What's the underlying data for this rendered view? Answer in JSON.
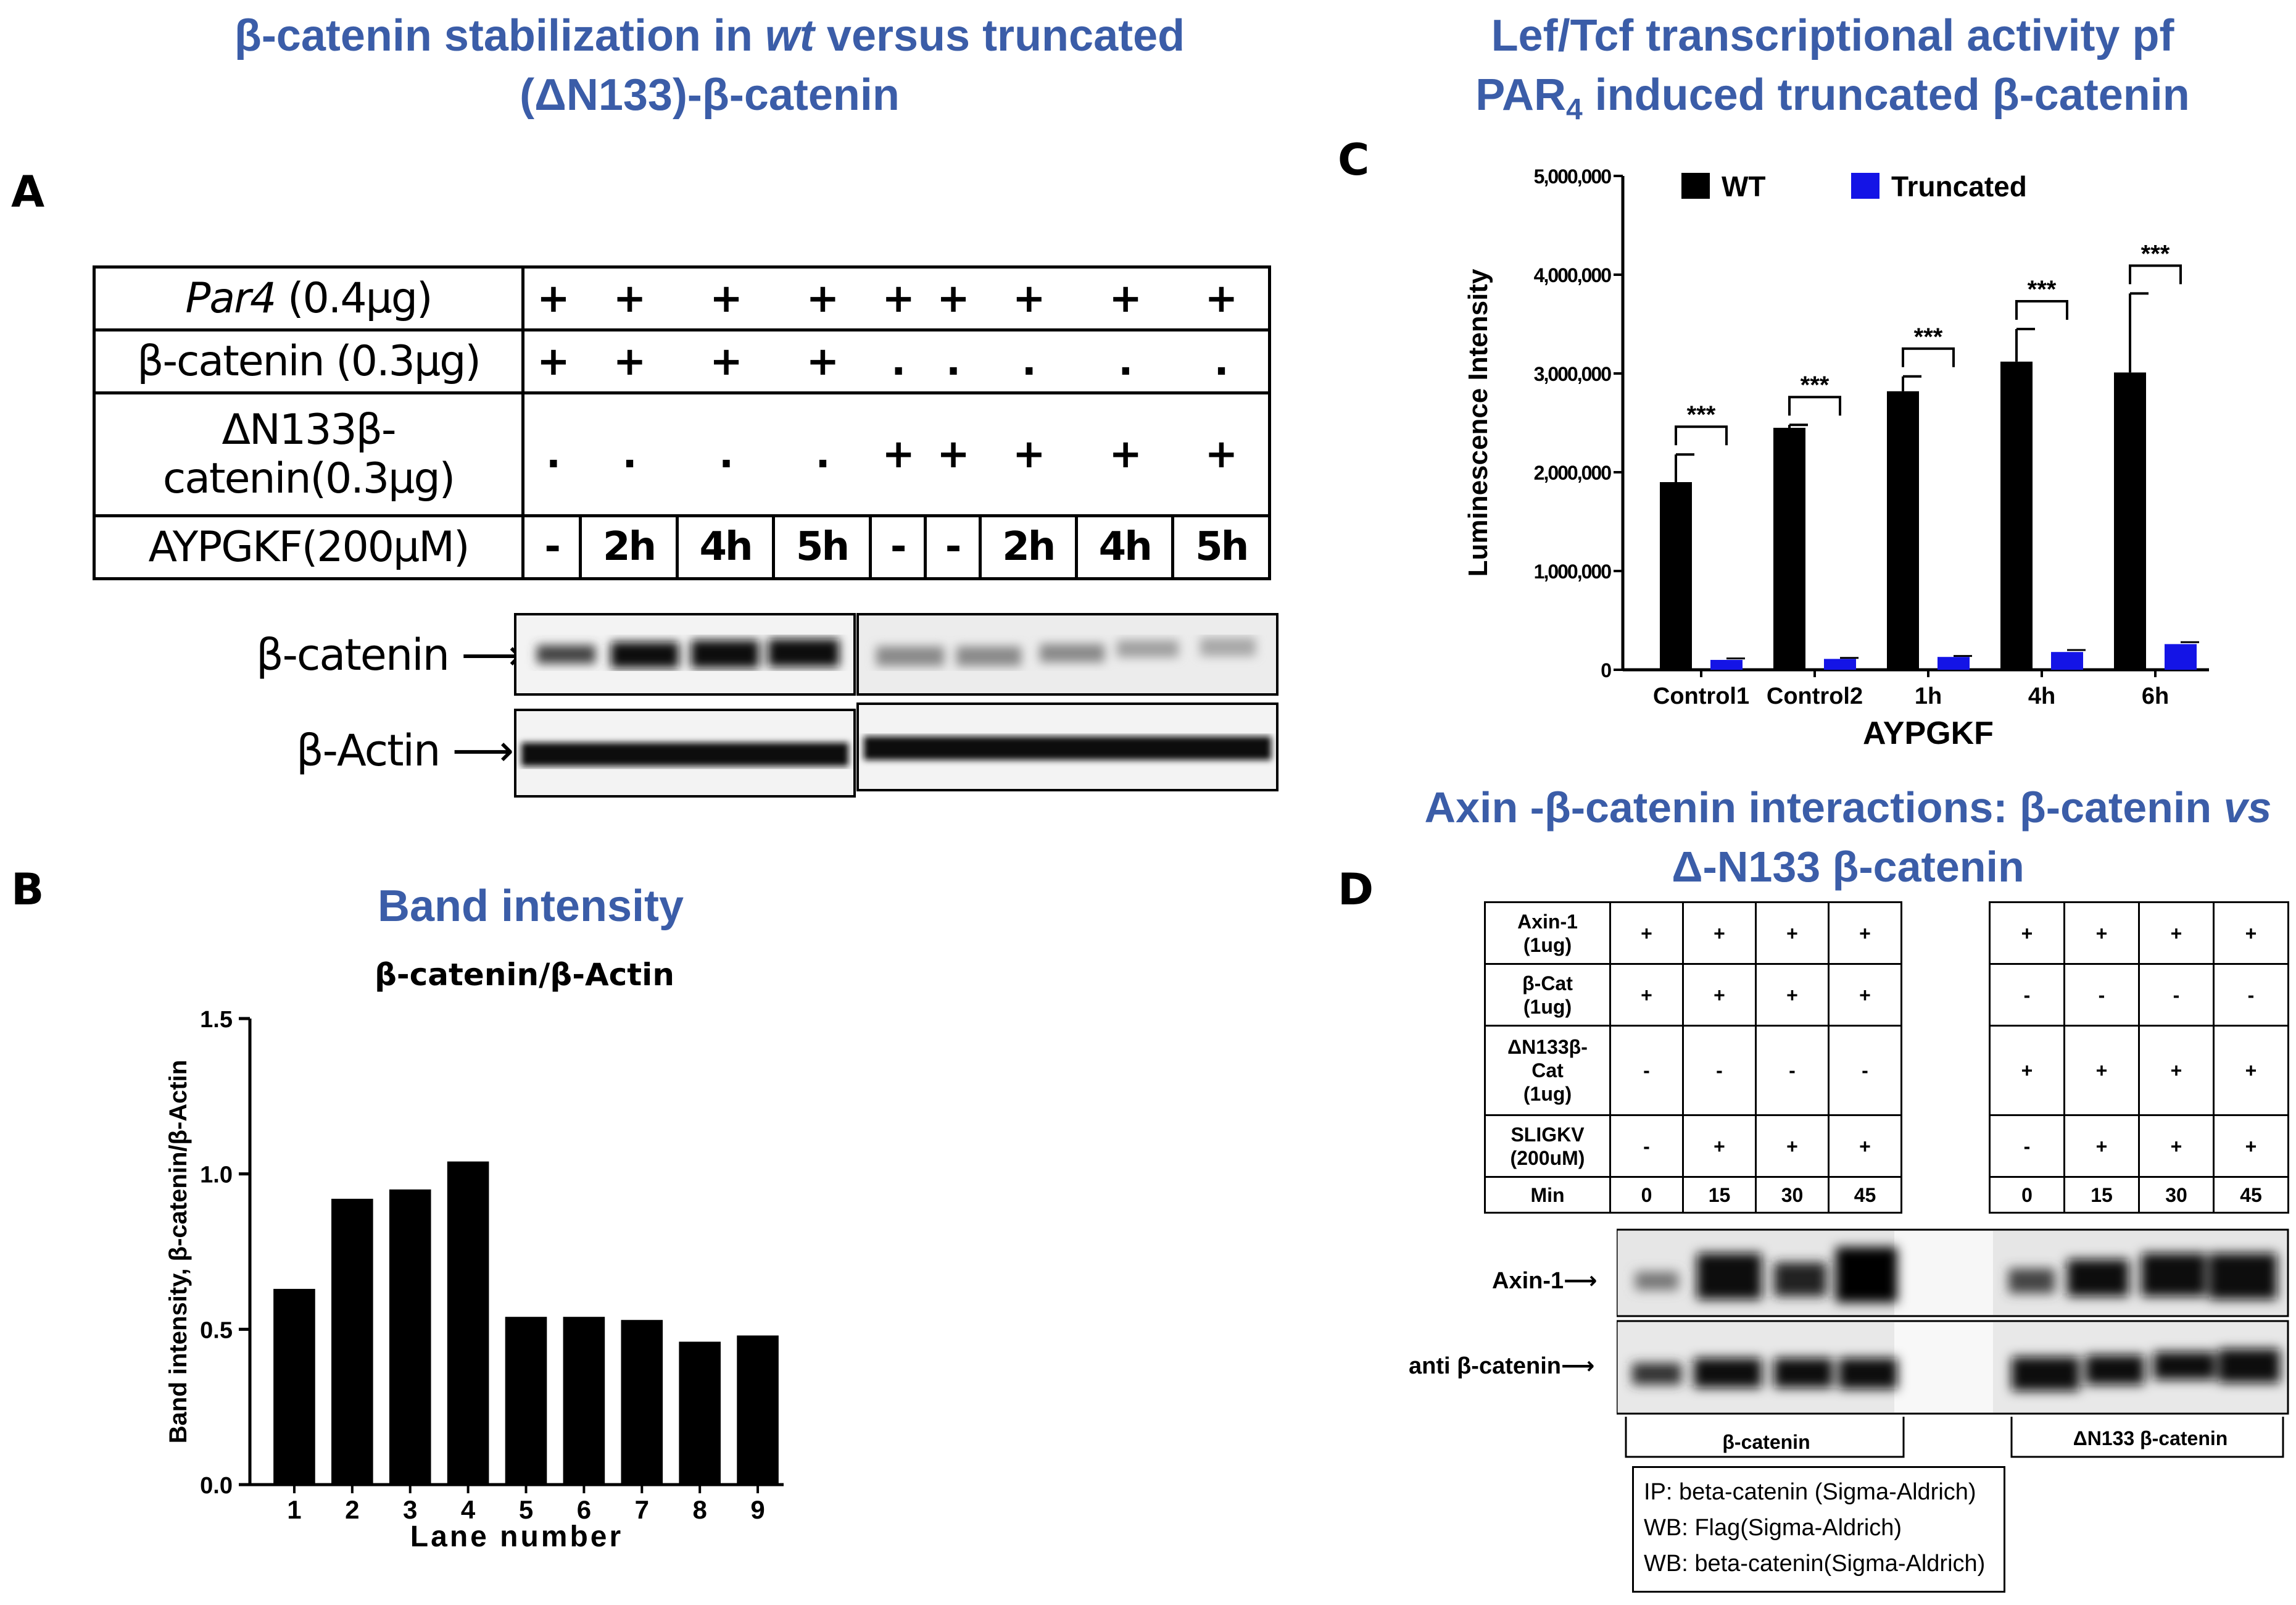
{
  "panel_a": {
    "title_line1_pre": "β-catenin stabilization  in ",
    "title_line1_em": "wt",
    "title_line1_post": " versus truncated",
    "title_line2": "(ΔN133)-β-catenin",
    "letter": "A",
    "rows": [
      {
        "label_em": "Par4",
        "label_rest": " (0.4μg)",
        "cells": [
          "+",
          "+",
          "+",
          "+",
          "+",
          "+",
          "+",
          "+",
          "+"
        ]
      },
      {
        "label_em": "",
        "label_rest": "β-catenin (0.3μg)",
        "cells": [
          "+",
          "+",
          "+",
          "+",
          ".",
          ".",
          ".",
          ".",
          "."
        ]
      },
      {
        "label_em": "",
        "label_rest": "ΔN133β-catenin(0.3μg)",
        "cells": [
          ".",
          ".",
          ".",
          ".",
          "+",
          "+",
          "+",
          "+",
          "+"
        ]
      },
      {
        "label_em": "",
        "label_rest": "AYPGKF(200μM)",
        "cells": [
          "-",
          "2h",
          "4h",
          "5h",
          "-",
          "-",
          "2h",
          "4h",
          "5h"
        ]
      }
    ],
    "blot_labels": [
      "β-catenin",
      "β-Actin"
    ],
    "arrow": "⟶"
  },
  "panel_b": {
    "letter": "B",
    "title": "Band intensity",
    "subtitle": "β-catenin/β-Actin",
    "chart_data": {
      "type": "bar",
      "categories": [
        "1",
        "2",
        "3",
        "4",
        "5",
        "6",
        "7",
        "8",
        "9"
      ],
      "values": [
        0.63,
        0.92,
        0.95,
        1.04,
        0.54,
        0.54,
        0.53,
        0.46,
        0.48
      ],
      "title": "β-catenin/β-Actin",
      "xlabel": "Lane number",
      "ylabel": "Band intensity, β-catenin/β-Actin",
      "ylim": [
        0,
        1.5
      ],
      "yticks": [
        "0.0",
        "0.5",
        "1.0",
        "1.5"
      ]
    }
  },
  "panel_c": {
    "letter": "C",
    "title_line1": "Lef/Tcf transcriptional  activity pf",
    "title_line2_pre": "PAR",
    "title_line2_sub": "4",
    "title_line2_post": " induced truncated β-catenin",
    "chart_data": {
      "type": "bar",
      "categories": [
        "Control1",
        "Control2",
        "1h",
        "4h",
        "6h"
      ],
      "series": [
        {
          "name": "WT",
          "color": "#000000",
          "values": [
            1900000,
            2450000,
            2820000,
            3120000,
            3010000
          ],
          "errors": [
            280000,
            30000,
            150000,
            330000,
            800000
          ]
        },
        {
          "name": "Truncated",
          "color": "#1414e6",
          "values": [
            100000,
            110000,
            130000,
            180000,
            260000
          ],
          "errors": [
            15000,
            10000,
            10000,
            20000,
            20000
          ]
        }
      ],
      "significance": "***",
      "xlabel": "AYPGKF",
      "ylabel": "Luminescence Intensity",
      "ylim": [
        0,
        5000000
      ],
      "yticks": [
        "0",
        "1,000,000",
        "2,000,000",
        "3,000,000",
        "4,000,000",
        "5,000,000"
      ]
    }
  },
  "panel_d": {
    "letter": "D",
    "title_line1_pre": "Axin -β-catenin interactions: β-catenin ",
    "title_line1_em": "vs",
    "title_line2": "Δ-N133  β-catenin",
    "rows": [
      {
        "label": "Axin-1\n(1ug)",
        "cells": [
          "+",
          "+",
          "+",
          "+",
          "+",
          "+",
          "+",
          "+"
        ]
      },
      {
        "label": "β-Cat\n(1ug)",
        "cells": [
          "+",
          "+",
          "+",
          "+",
          "-",
          "-",
          "-",
          "-"
        ]
      },
      {
        "label": "ΔN133β-\nCat\n(1ug)",
        "cells": [
          "-",
          "-",
          "-",
          "-",
          "+",
          "+",
          "+",
          "+"
        ]
      },
      {
        "label": "SLIGKV\n(200uM)",
        "cells": [
          "-",
          "+",
          "+",
          "+",
          "-",
          "+",
          "+",
          "+"
        ]
      },
      {
        "label": "Min",
        "cells": [
          "0",
          "15",
          "30",
          "45",
          "0",
          "15",
          "30",
          "45"
        ]
      }
    ],
    "blot_labels": [
      "Axin-1",
      "anti β-catenin"
    ],
    "group_labels": [
      "β-catenin",
      "ΔN133 β-catenin"
    ],
    "notes": [
      "IP: beta-catenin (Sigma-Aldrich)",
      "WB: Flag(Sigma-Aldrich)",
      "WB: beta-catenin(Sigma-Aldrich)"
    ]
  }
}
